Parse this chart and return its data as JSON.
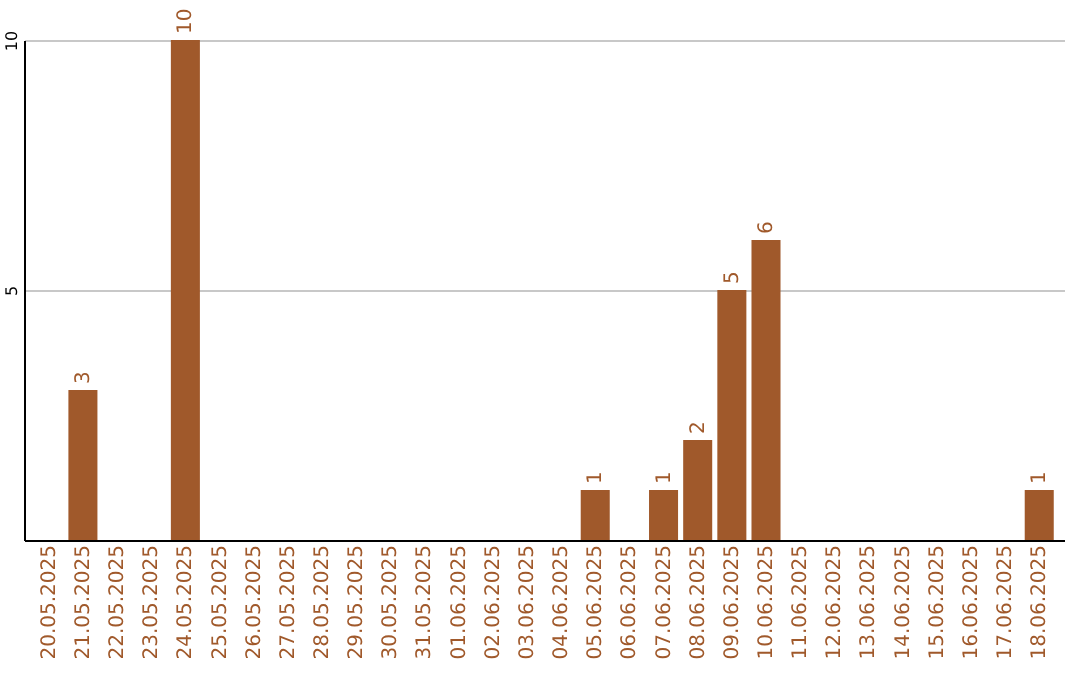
{
  "chart_data": {
    "type": "bar",
    "categories": [
      "20.05.2025",
      "21.05.2025",
      "22.05.2025",
      "23.05.2025",
      "24.05.2025",
      "25.05.2025",
      "26.05.2025",
      "27.05.2025",
      "28.05.2025",
      "29.05.2025",
      "30.05.2025",
      "31.05.2025",
      "01.06.2025",
      "02.06.2025",
      "03.06.2025",
      "04.06.2025",
      "05.06.2025",
      "06.06.2025",
      "07.06.2025",
      "08.06.2025",
      "09.06.2025",
      "10.06.2025",
      "11.06.2025",
      "12.06.2025",
      "13.06.2025",
      "14.06.2025",
      "15.06.2025",
      "16.06.2025",
      "17.06.2025",
      "18.06.2025"
    ],
    "values": [
      0,
      3,
      0,
      0,
      10,
      0,
      0,
      0,
      0,
      0,
      0,
      0,
      0,
      0,
      0,
      0,
      1,
      0,
      1,
      2,
      5,
      6,
      0,
      0,
      0,
      0,
      0,
      0,
      0,
      1
    ],
    "value_labels": [
      null,
      "3",
      null,
      null,
      "10",
      null,
      null,
      null,
      null,
      null,
      null,
      null,
      null,
      null,
      null,
      null,
      "1",
      null,
      "1",
      "2",
      "5",
      "6",
      null,
      null,
      null,
      null,
      null,
      null,
      null,
      "1"
    ],
    "color": "#a0592b",
    "ylim": [
      0,
      10
    ],
    "yticks": [
      5,
      10
    ],
    "grid": "y"
  }
}
